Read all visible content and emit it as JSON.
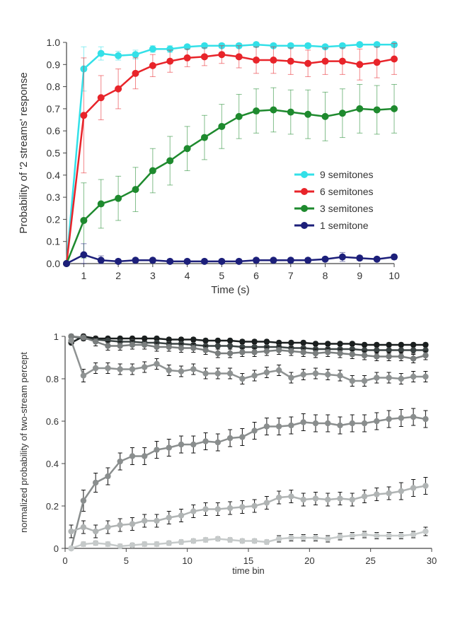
{
  "chart_data": [
    {
      "type": "line",
      "title": "",
      "xlabel": "Time (s)",
      "ylabel": "Probability of '2 streams' response",
      "xlim": [
        0.5,
        10
      ],
      "ylim": [
        0,
        1
      ],
      "x_ticks": [
        1,
        2,
        3,
        4,
        5,
        6,
        7,
        8,
        9,
        10
      ],
      "y_ticks": [
        0.0,
        0.1,
        0.2,
        0.3,
        0.4,
        0.5,
        0.6,
        0.7,
        0.8,
        0.9,
        1.0
      ],
      "y_tick_labels": [
        "0.0",
        "0.1",
        "0.2",
        "0.3",
        "0.4",
        "0.5",
        "0.6",
        "0.7",
        "0.8",
        "0.9",
        "1.0"
      ],
      "grid": false,
      "legend_position": "center-right",
      "x": [
        0.5,
        1,
        1.5,
        2,
        2.5,
        3,
        3.5,
        4,
        4.5,
        5,
        5.5,
        6,
        6.5,
        7,
        7.5,
        8,
        8.5,
        9,
        9.5,
        10
      ],
      "series": [
        {
          "name": "9 semitones",
          "color": "#33e0e8",
          "values": [
            0.0,
            0.88,
            0.95,
            0.94,
            0.945,
            0.97,
            0.97,
            0.98,
            0.985,
            0.985,
            0.985,
            0.99,
            0.985,
            0.985,
            0.985,
            0.98,
            0.985,
            0.99,
            0.99,
            0.99
          ],
          "errors": [
            0,
            0.1,
            0.03,
            0.02,
            0.02,
            0.015,
            0.015,
            0.01,
            0.01,
            0.01,
            0.01,
            0.01,
            0.01,
            0.01,
            0.01,
            0.01,
            0.01,
            0.01,
            0.01,
            0.01
          ]
        },
        {
          "name": "6 semitones",
          "color": "#e8242a",
          "values": [
            0.0,
            0.67,
            0.75,
            0.79,
            0.86,
            0.895,
            0.915,
            0.93,
            0.935,
            0.945,
            0.935,
            0.92,
            0.92,
            0.915,
            0.905,
            0.915,
            0.915,
            0.9,
            0.91,
            0.925
          ],
          "errors": [
            0,
            0.26,
            0.1,
            0.09,
            0.07,
            0.05,
            0.05,
            0.04,
            0.04,
            0.04,
            0.05,
            0.06,
            0.06,
            0.06,
            0.06,
            0.06,
            0.06,
            0.07,
            0.07,
            0.07
          ]
        },
        {
          "name": "3 semitones",
          "color": "#1e8a2e",
          "values": [
            0.0,
            0.195,
            0.27,
            0.295,
            0.335,
            0.42,
            0.465,
            0.52,
            0.57,
            0.62,
            0.665,
            0.69,
            0.695,
            0.685,
            0.675,
            0.665,
            0.68,
            0.7,
            0.695,
            0.7
          ],
          "errors": [
            0,
            0.17,
            0.11,
            0.1,
            0.1,
            0.1,
            0.11,
            0.1,
            0.1,
            0.1,
            0.1,
            0.1,
            0.1,
            0.1,
            0.11,
            0.11,
            0.11,
            0.11,
            0.11,
            0.11
          ]
        },
        {
          "name": "1 semitone",
          "color": "#1c1f7a",
          "values": [
            0.0,
            0.04,
            0.015,
            0.01,
            0.015,
            0.015,
            0.01,
            0.01,
            0.01,
            0.01,
            0.01,
            0.015,
            0.015,
            0.015,
            0.015,
            0.02,
            0.03,
            0.025,
            0.02,
            0.03
          ],
          "errors": [
            0,
            0.05,
            0.02,
            0.01,
            0.01,
            0.01,
            0.01,
            0.01,
            0.01,
            0.01,
            0.01,
            0.01,
            0.01,
            0.01,
            0.01,
            0.01,
            0.02,
            0.01,
            0.01,
            0.01
          ]
        }
      ]
    },
    {
      "type": "line",
      "title": "",
      "xlabel": "time bin",
      "ylabel": "normalized probability of two-stream percept",
      "xlim": [
        0,
        30
      ],
      "ylim": [
        0,
        1
      ],
      "x_ticks": [
        0,
        5,
        10,
        15,
        20,
        25,
        30
      ],
      "y_ticks": [
        0,
        0.2,
        0.4,
        0.6,
        0.8,
        1
      ],
      "y_tick_labels": [
        "0",
        "0.2",
        "0.4",
        "0.6",
        "0.8",
        "1"
      ],
      "grid": false,
      "x": [
        0.5,
        1.5,
        2.5,
        3.5,
        4.5,
        5.5,
        6.5,
        7.5,
        8.5,
        9.5,
        10.5,
        11.5,
        12.5,
        13.5,
        14.5,
        15.5,
        16.5,
        17.5,
        18.5,
        19.5,
        20.5,
        21.5,
        22.5,
        23.5,
        24.5,
        25.5,
        26.5,
        27.5,
        28.5,
        29.5
      ],
      "series": [
        {
          "color": "#1a1f1f",
          "values": [
            0.97,
            1.0,
            0.99,
            0.99,
            0.99,
            0.99,
            0.99,
            0.99,
            0.985,
            0.985,
            0.985,
            0.98,
            0.98,
            0.98,
            0.975,
            0.975,
            0.975,
            0.97,
            0.97,
            0.97,
            0.965,
            0.965,
            0.965,
            0.965,
            0.96,
            0.96,
            0.96,
            0.96,
            0.96,
            0.96
          ],
          "errors": [
            0.01,
            0.01,
            0.01,
            0.01,
            0.01,
            0.01,
            0.01,
            0.01,
            0.01,
            0.01,
            0.01,
            0.01,
            0.01,
            0.01,
            0.01,
            0.01,
            0.01,
            0.01,
            0.01,
            0.01,
            0.01,
            0.01,
            0.01,
            0.01,
            0.01,
            0.01,
            0.01,
            0.01,
            0.01,
            0.01
          ]
        },
        {
          "color": "#3c4444",
          "values": [
            1.0,
            0.99,
            0.985,
            0.98,
            0.975,
            0.975,
            0.97,
            0.97,
            0.965,
            0.965,
            0.96,
            0.955,
            0.955,
            0.955,
            0.95,
            0.95,
            0.95,
            0.95,
            0.945,
            0.945,
            0.94,
            0.94,
            0.94,
            0.94,
            0.935,
            0.935,
            0.935,
            0.935,
            0.935,
            0.935
          ],
          "errors": [
            0.01,
            0.01,
            0.015,
            0.015,
            0.015,
            0.015,
            0.015,
            0.015,
            0.015,
            0.015,
            0.015,
            0.015,
            0.015,
            0.015,
            0.015,
            0.015,
            0.015,
            0.015,
            0.015,
            0.015,
            0.015,
            0.015,
            0.015,
            0.015,
            0.015,
            0.015,
            0.015,
            0.015,
            0.015,
            0.015
          ]
        },
        {
          "color": "#7a7e7e",
          "values": [
            1.0,
            0.995,
            0.975,
            0.955,
            0.955,
            0.96,
            0.96,
            0.95,
            0.95,
            0.945,
            0.945,
            0.935,
            0.92,
            0.92,
            0.925,
            0.925,
            0.93,
            0.935,
            0.93,
            0.925,
            0.92,
            0.925,
            0.92,
            0.915,
            0.91,
            0.905,
            0.905,
            0.905,
            0.895,
            0.91
          ],
          "errors": [
            0.01,
            0.015,
            0.02,
            0.02,
            0.02,
            0.02,
            0.02,
            0.02,
            0.02,
            0.02,
            0.02,
            0.02,
            0.02,
            0.02,
            0.02,
            0.02,
            0.02,
            0.02,
            0.02,
            0.02,
            0.02,
            0.02,
            0.02,
            0.02,
            0.02,
            0.02,
            0.02,
            0.02,
            0.02,
            0.02
          ]
        },
        {
          "color": "#8e9292",
          "values": [
            0.98,
            0.815,
            0.85,
            0.85,
            0.845,
            0.845,
            0.855,
            0.87,
            0.84,
            0.835,
            0.845,
            0.825,
            0.825,
            0.825,
            0.8,
            0.815,
            0.83,
            0.84,
            0.805,
            0.82,
            0.825,
            0.82,
            0.815,
            0.79,
            0.79,
            0.805,
            0.805,
            0.8,
            0.81,
            0.81
          ],
          "errors": [
            0.01,
            0.03,
            0.025,
            0.025,
            0.025,
            0.025,
            0.025,
            0.025,
            0.025,
            0.025,
            0.025,
            0.025,
            0.025,
            0.025,
            0.025,
            0.025,
            0.025,
            0.025,
            0.025,
            0.025,
            0.025,
            0.025,
            0.025,
            0.025,
            0.025,
            0.025,
            0.025,
            0.025,
            0.025,
            0.025
          ]
        },
        {
          "color": "#8a8e8e",
          "values": [
            0.0,
            0.225,
            0.31,
            0.34,
            0.41,
            0.435,
            0.435,
            0.465,
            0.475,
            0.49,
            0.49,
            0.505,
            0.5,
            0.52,
            0.525,
            0.555,
            0.575,
            0.575,
            0.58,
            0.595,
            0.59,
            0.59,
            0.58,
            0.59,
            0.59,
            0.6,
            0.61,
            0.615,
            0.62,
            0.61
          ],
          "errors": [
            0.005,
            0.05,
            0.045,
            0.04,
            0.04,
            0.04,
            0.04,
            0.04,
            0.04,
            0.04,
            0.04,
            0.04,
            0.04,
            0.04,
            0.04,
            0.04,
            0.04,
            0.04,
            0.04,
            0.04,
            0.04,
            0.04,
            0.04,
            0.04,
            0.04,
            0.04,
            0.04,
            0.04,
            0.04,
            0.04
          ]
        },
        {
          "color": "#b0b4b4",
          "values": [
            0.08,
            0.1,
            0.08,
            0.1,
            0.11,
            0.115,
            0.13,
            0.13,
            0.145,
            0.155,
            0.175,
            0.185,
            0.185,
            0.19,
            0.195,
            0.2,
            0.215,
            0.24,
            0.245,
            0.23,
            0.235,
            0.23,
            0.235,
            0.23,
            0.245,
            0.255,
            0.26,
            0.27,
            0.285,
            0.295
          ],
          "errors": [
            0.03,
            0.03,
            0.03,
            0.03,
            0.03,
            0.03,
            0.03,
            0.03,
            0.03,
            0.03,
            0.03,
            0.03,
            0.03,
            0.03,
            0.03,
            0.03,
            0.03,
            0.03,
            0.03,
            0.03,
            0.03,
            0.03,
            0.03,
            0.03,
            0.03,
            0.03,
            0.03,
            0.04,
            0.04,
            0.04
          ]
        },
        {
          "color": "#c6caca",
          "values": [
            0.0,
            0.02,
            0.025,
            0.02,
            0.01,
            0.015,
            0.02,
            0.02,
            0.025,
            0.03,
            0.035,
            0.04,
            0.045,
            0.04,
            0.035,
            0.035,
            0.03,
            0.045,
            0.05,
            0.05,
            0.05,
            0.045,
            0.055,
            0.06,
            0.065,
            0.06,
            0.06,
            0.06,
            0.065,
            0.08
          ],
          "errors": [
            0.005,
            0.01,
            0.01,
            0.01,
            0.01,
            0.01,
            0.01,
            0.01,
            0.01,
            0.01,
            0.01,
            0.01,
            0.01,
            0.01,
            0.01,
            0.01,
            0.01,
            0.015,
            0.015,
            0.015,
            0.015,
            0.015,
            0.015,
            0.015,
            0.015,
            0.015,
            0.015,
            0.015,
            0.015,
            0.02
          ]
        }
      ]
    }
  ]
}
